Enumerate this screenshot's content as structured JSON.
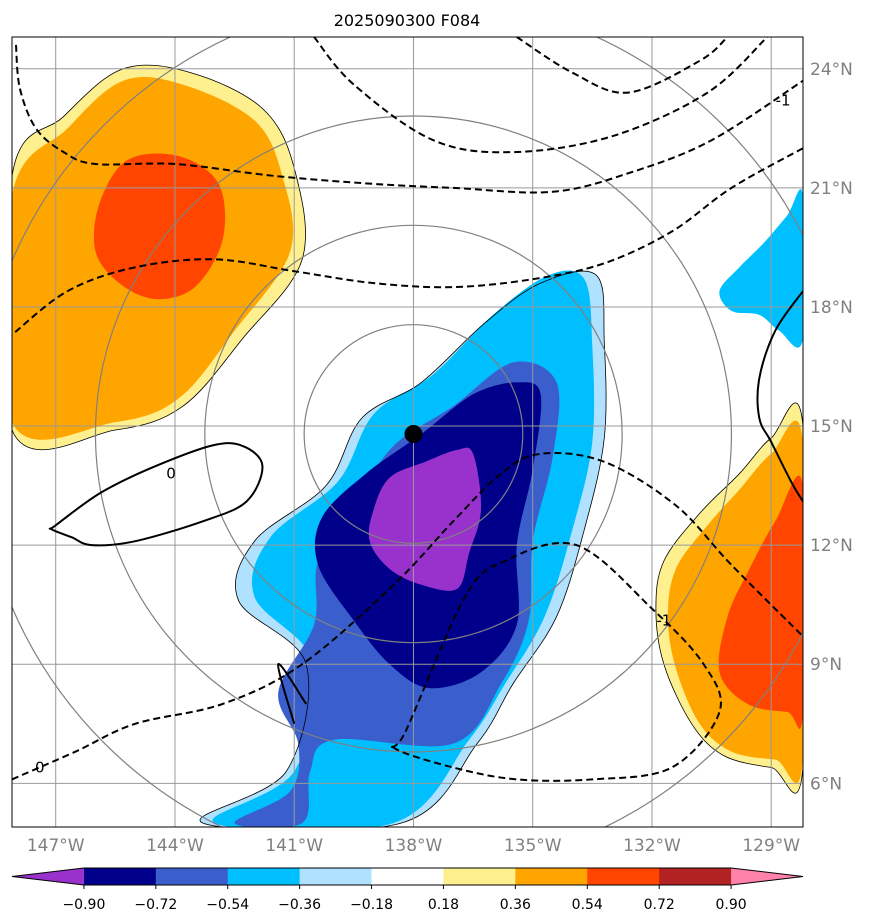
{
  "chart_data": {
    "type": "heatmap",
    "title": "2025090300 F084",
    "map": {
      "lon_range": [
        -148.1,
        -128.2
      ],
      "lat_range": [
        4.9,
        24.8
      ],
      "lon_ticks": [
        -147,
        -144,
        -141,
        -138,
        -135,
        -132,
        -129
      ],
      "lat_ticks": [
        6,
        9,
        12,
        15,
        18,
        21,
        24
      ],
      "lon_tick_labels": [
        "147°W",
        "144°W",
        "141°W",
        "138°W",
        "135°W",
        "132°W",
        "129°W"
      ],
      "lat_tick_labels": [
        "6°N",
        "9°N",
        "12°N",
        "15°N",
        "18°N",
        "21°N",
        "24°N"
      ],
      "gridlines": true
    },
    "center": {
      "lon": -138.0,
      "lat": 14.8
    },
    "range_rings_deg": [
      2.75,
      5.25,
      8.0,
      11.0
    ],
    "colorbar": {
      "levels": [
        -0.9,
        -0.72,
        -0.54,
        -0.36,
        -0.18,
        0.18,
        0.36,
        0.54,
        0.72,
        0.9
      ],
      "tick_labels": [
        "−0.90",
        "−0.72",
        "−0.54",
        "−0.36",
        "−0.18",
        "0.18",
        "0.36",
        "0.54",
        "0.72",
        "0.90"
      ],
      "colors": [
        "#9932cc",
        "#00008b",
        "#3a5fcd",
        "#00bfff",
        "#b0e2ff",
        "#ffffff",
        "#fff08f",
        "#ffa500",
        "#ff4500",
        "#b22222",
        "#ff82ab"
      ],
      "extend": "both"
    },
    "filled_regions": [
      {
        "name": "anomaly-nw-0.18",
        "color_index": 6,
        "points": [
          [
            -148.1,
            21.3
          ],
          [
            -146.8,
            22.8
          ],
          [
            -145.3,
            24.0
          ],
          [
            -143.6,
            23.9
          ],
          [
            -141.8,
            23.0
          ],
          [
            -141.0,
            21.5
          ],
          [
            -140.8,
            19.2
          ],
          [
            -142.3,
            17.2
          ],
          [
            -143.8,
            15.5
          ],
          [
            -145.5,
            14.9
          ],
          [
            -148.1,
            14.9
          ]
        ]
      },
      {
        "name": "anomaly-nw-0.36",
        "color_index": 7,
        "points": [
          [
            -148.1,
            20.8
          ],
          [
            -146.7,
            22.5
          ],
          [
            -145.3,
            23.7
          ],
          [
            -143.8,
            23.6
          ],
          [
            -142.0,
            22.7
          ],
          [
            -141.3,
            21.3
          ],
          [
            -141.1,
            19.4
          ],
          [
            -142.5,
            17.4
          ],
          [
            -143.9,
            15.7
          ],
          [
            -145.5,
            15.1
          ],
          [
            -148.1,
            15.1
          ]
        ]
      },
      {
        "name": "anomaly-nw-0.54",
        "color_index": 8,
        "points": [
          [
            -145.9,
            20.6
          ],
          [
            -145.2,
            21.7
          ],
          [
            -143.9,
            21.8
          ],
          [
            -142.9,
            21.1
          ],
          [
            -142.8,
            19.7
          ],
          [
            -143.5,
            18.5
          ],
          [
            -144.5,
            18.2
          ],
          [
            -145.4,
            18.6
          ],
          [
            -146.0,
            19.4
          ]
        ]
      },
      {
        "name": "anomaly-se-0.18",
        "color_index": 6,
        "points": [
          [
            -128.2,
            15.0
          ],
          [
            -129.0,
            14.7
          ],
          [
            -129.8,
            13.8
          ],
          [
            -130.8,
            12.8
          ],
          [
            -131.7,
            11.6
          ],
          [
            -131.9,
            10.4
          ],
          [
            -131.7,
            9.0
          ],
          [
            -131.0,
            7.5
          ],
          [
            -130.2,
            6.7
          ],
          [
            -129.0,
            6.4
          ],
          [
            -128.2,
            6.4
          ]
        ]
      },
      {
        "name": "anomaly-se-0.36",
        "color_index": 7,
        "points": [
          [
            -128.2,
            14.6
          ],
          [
            -129.0,
            14.3
          ],
          [
            -129.8,
            13.4
          ],
          [
            -130.6,
            12.5
          ],
          [
            -131.4,
            11.4
          ],
          [
            -131.6,
            10.2
          ],
          [
            -131.4,
            8.9
          ],
          [
            -130.8,
            7.5
          ],
          [
            -130.0,
            6.8
          ],
          [
            -128.9,
            6.6
          ],
          [
            -128.2,
            6.6
          ]
        ]
      },
      {
        "name": "anomaly-se-0.54",
        "color_index": 8,
        "points": [
          [
            -128.2,
            13.5
          ],
          [
            -128.9,
            12.6
          ],
          [
            -129.6,
            11.3
          ],
          [
            -130.1,
            10.2
          ],
          [
            -130.3,
            8.8
          ],
          [
            -129.6,
            8.0
          ],
          [
            -128.6,
            7.8
          ],
          [
            -128.2,
            7.8
          ]
        ]
      },
      {
        "name": "anomaly-ne-neg",
        "color_index": 3,
        "points": [
          [
            -128.2,
            20.8
          ],
          [
            -128.6,
            20.3
          ],
          [
            -129.2,
            19.6
          ],
          [
            -129.8,
            19.0
          ],
          [
            -130.3,
            18.4
          ],
          [
            -130.0,
            17.9
          ],
          [
            -129.3,
            17.8
          ],
          [
            -128.8,
            17.4
          ],
          [
            -128.2,
            17.2
          ]
        ]
      },
      {
        "name": "anomaly-main-m0.18",
        "color_index": 4,
        "points": [
          [
            -143.3,
            5.0
          ],
          [
            -141.2,
            6.3
          ],
          [
            -140.7,
            9.0
          ],
          [
            -142.4,
            10.6
          ],
          [
            -142.0,
            12.1
          ],
          [
            -140.2,
            13.5
          ],
          [
            -139.3,
            15.2
          ],
          [
            -137.8,
            16.1
          ],
          [
            -136.2,
            17.6
          ],
          [
            -134.8,
            18.6
          ],
          [
            -133.4,
            18.8
          ],
          [
            -133.2,
            17.1
          ],
          [
            -133.2,
            14.7
          ],
          [
            -133.7,
            12.4
          ],
          [
            -134.4,
            10.2
          ],
          [
            -135.5,
            8.5
          ],
          [
            -136.4,
            7.0
          ],
          [
            -138.3,
            5.0
          ]
        ]
      },
      {
        "name": "anomaly-main-m0.36",
        "color_index": 3,
        "points": [
          [
            -143.0,
            5.0
          ],
          [
            -141.0,
            6.3
          ],
          [
            -140.5,
            9.0
          ],
          [
            -142.0,
            10.7
          ],
          [
            -141.6,
            12.2
          ],
          [
            -139.9,
            13.6
          ],
          [
            -139.0,
            15.3
          ],
          [
            -137.5,
            16.3
          ],
          [
            -136.0,
            17.8
          ],
          [
            -134.6,
            18.8
          ],
          [
            -133.7,
            18.7
          ],
          [
            -133.5,
            17.0
          ],
          [
            -133.5,
            14.6
          ],
          [
            -134.0,
            12.4
          ],
          [
            -134.7,
            10.2
          ],
          [
            -135.7,
            8.5
          ],
          [
            -136.6,
            7.1
          ],
          [
            -138.5,
            5.0
          ]
        ]
      },
      {
        "name": "anomaly-main-m0.54",
        "color_index": 2,
        "points": [
          [
            -142.5,
            5.0
          ],
          [
            -141.1,
            5.8
          ],
          [
            -140.9,
            7.0
          ],
          [
            -141.4,
            8.3
          ],
          [
            -140.5,
            10.0
          ],
          [
            -140.4,
            11.6
          ],
          [
            -139.5,
            13.0
          ],
          [
            -138.5,
            14.5
          ],
          [
            -137.0,
            15.5
          ],
          [
            -135.5,
            16.6
          ],
          [
            -134.4,
            16.1
          ],
          [
            -134.5,
            14.2
          ],
          [
            -135.0,
            12.1
          ],
          [
            -135.1,
            10.1
          ],
          [
            -135.8,
            8.5
          ],
          [
            -137.0,
            7.0
          ],
          [
            -140.0,
            7.1
          ],
          [
            -140.6,
            6.3
          ],
          [
            -140.8,
            5.0
          ]
        ]
      },
      {
        "name": "anomaly-main-m0.72",
        "color_index": 1,
        "points": [
          [
            -140.4,
            11.5
          ],
          [
            -140.3,
            12.7
          ],
          [
            -139.2,
            13.8
          ],
          [
            -137.8,
            14.8
          ],
          [
            -136.5,
            15.8
          ],
          [
            -135.4,
            16.1
          ],
          [
            -134.8,
            15.8
          ],
          [
            -135.0,
            13.9
          ],
          [
            -135.4,
            12.0
          ],
          [
            -135.4,
            10.0
          ],
          [
            -136.3,
            8.8
          ],
          [
            -137.6,
            8.4
          ],
          [
            -138.6,
            9.0
          ],
          [
            -139.5,
            10.1
          ]
        ]
      },
      {
        "name": "anomaly-main-m0.90",
        "color_index": 0,
        "points": [
          [
            -139.0,
            12.9
          ],
          [
            -138.6,
            13.7
          ],
          [
            -137.7,
            14.1
          ],
          [
            -136.9,
            14.4
          ],
          [
            -136.5,
            14.3
          ],
          [
            -136.3,
            12.9
          ],
          [
            -136.6,
            11.8
          ],
          [
            -136.9,
            10.9
          ],
          [
            -137.8,
            11.0
          ],
          [
            -138.6,
            11.4
          ],
          [
            -139.1,
            12.1
          ]
        ]
      }
    ],
    "contours": [
      {
        "value": -1,
        "style": "dashed",
        "label": "-1",
        "label_at": [
          -128.7,
          23.2
        ],
        "points": [
          [
            -148.0,
            24.6
          ],
          [
            -147.9,
            23.5
          ],
          [
            -147.5,
            22.5
          ],
          [
            -146.8,
            21.9
          ],
          [
            -146.0,
            21.6
          ],
          [
            -144.0,
            21.6
          ],
          [
            -141.5,
            21.3
          ],
          [
            -139.0,
            21.1
          ],
          [
            -137.0,
            21.0
          ],
          [
            -134.5,
            20.9
          ],
          [
            -132.5,
            21.4
          ],
          [
            -130.5,
            22.2
          ],
          [
            -128.2,
            23.7
          ]
        ]
      },
      {
        "value": -1,
        "style": "dashed",
        "label": "",
        "points": [
          [
            -128.2,
            22.0
          ],
          [
            -130.0,
            21.0
          ],
          [
            -131.5,
            19.9
          ],
          [
            -133.2,
            19.1
          ],
          [
            -135.0,
            18.7
          ],
          [
            -137.0,
            18.5
          ],
          [
            -139.0,
            18.6
          ],
          [
            -141.0,
            18.9
          ],
          [
            -143.0,
            19.2
          ],
          [
            -145.0,
            19.0
          ],
          [
            -146.7,
            18.4
          ],
          [
            -148.1,
            17.3
          ]
        ]
      },
      {
        "value": -1,
        "style": "dashed",
        "label": "",
        "points": [
          [
            -140.5,
            24.8
          ],
          [
            -139.5,
            23.6
          ],
          [
            -137.5,
            22.2
          ],
          [
            -135.5,
            21.9
          ],
          [
            -133.0,
            22.3
          ],
          [
            -130.6,
            23.4
          ],
          [
            -129.1,
            24.8
          ]
        ]
      },
      {
        "value": -1,
        "style": "dashed",
        "label": "",
        "points": [
          [
            -135.4,
            24.8
          ],
          [
            -134.0,
            23.9
          ],
          [
            -132.6,
            23.4
          ],
          [
            -130.8,
            24.2
          ],
          [
            -130.1,
            24.8
          ]
        ]
      },
      {
        "value": -1,
        "style": "dashed",
        "label": "-1",
        "label_at": [
          -131.7,
          10.1
        ],
        "points": [
          [
            -138.2,
            7.3
          ],
          [
            -136.7,
            10.7
          ],
          [
            -135.7,
            11.6
          ],
          [
            -133.9,
            12.0
          ],
          [
            -132.0,
            10.4
          ],
          [
            -130.7,
            9.0
          ],
          [
            -130.3,
            7.8
          ],
          [
            -131.5,
            6.4
          ],
          [
            -133.5,
            6.1
          ],
          [
            -135.4,
            6.1
          ],
          [
            -137.0,
            6.4
          ],
          [
            -138.5,
            6.9
          ]
        ]
      },
      {
        "value": 0,
        "style": "dashed",
        "label": "0",
        "label_at": [
          -147.4,
          6.4
        ],
        "points": [
          [
            -148.1,
            6.1
          ],
          [
            -146.5,
            6.8
          ],
          [
            -145.0,
            7.5
          ],
          [
            -142.8,
            8.0
          ],
          [
            -140.8,
            9.0
          ],
          [
            -138.5,
            11.0
          ],
          [
            -137.0,
            12.6
          ],
          [
            -135.8,
            13.8
          ],
          [
            -134.8,
            14.3
          ],
          [
            -133.2,
            14.1
          ],
          [
            -131.4,
            13.0
          ],
          [
            -130.0,
            11.5
          ],
          [
            -128.2,
            9.7
          ]
        ]
      },
      {
        "value": 0,
        "style": "solid",
        "label": "0",
        "label_at": [
          -144.1,
          13.8
        ],
        "points": [
          [
            -147.0,
            12.5
          ],
          [
            -145.9,
            13.3
          ],
          [
            -144.7,
            13.9
          ],
          [
            -143.1,
            14.5
          ],
          [
            -142.3,
            14.5
          ],
          [
            -141.8,
            14.0
          ],
          [
            -142.2,
            13.1
          ],
          [
            -143.3,
            12.6
          ],
          [
            -145.0,
            12.1
          ],
          [
            -146.1,
            12.0
          ],
          [
            -146.6,
            12.2
          ],
          [
            -147.1,
            12.4
          ]
        ]
      },
      {
        "value": 0,
        "style": "solid",
        "label": "",
        "points": [
          [
            -128.2,
            18.4
          ],
          [
            -128.9,
            17.4
          ],
          [
            -129.3,
            16.2
          ],
          [
            -129.3,
            15.2
          ],
          [
            -129.0,
            14.6
          ],
          [
            -128.5,
            13.6
          ],
          [
            -128.2,
            13.1
          ]
        ]
      },
      {
        "value": 0,
        "style": "solid",
        "label": "",
        "points": [
          [
            -141.0,
            7.5
          ],
          [
            -141.4,
            9.0
          ],
          [
            -140.7,
            8.0
          ]
        ]
      }
    ],
    "marker": {
      "name": "storm-center",
      "lon": -138.0,
      "lat": 14.8
    }
  }
}
